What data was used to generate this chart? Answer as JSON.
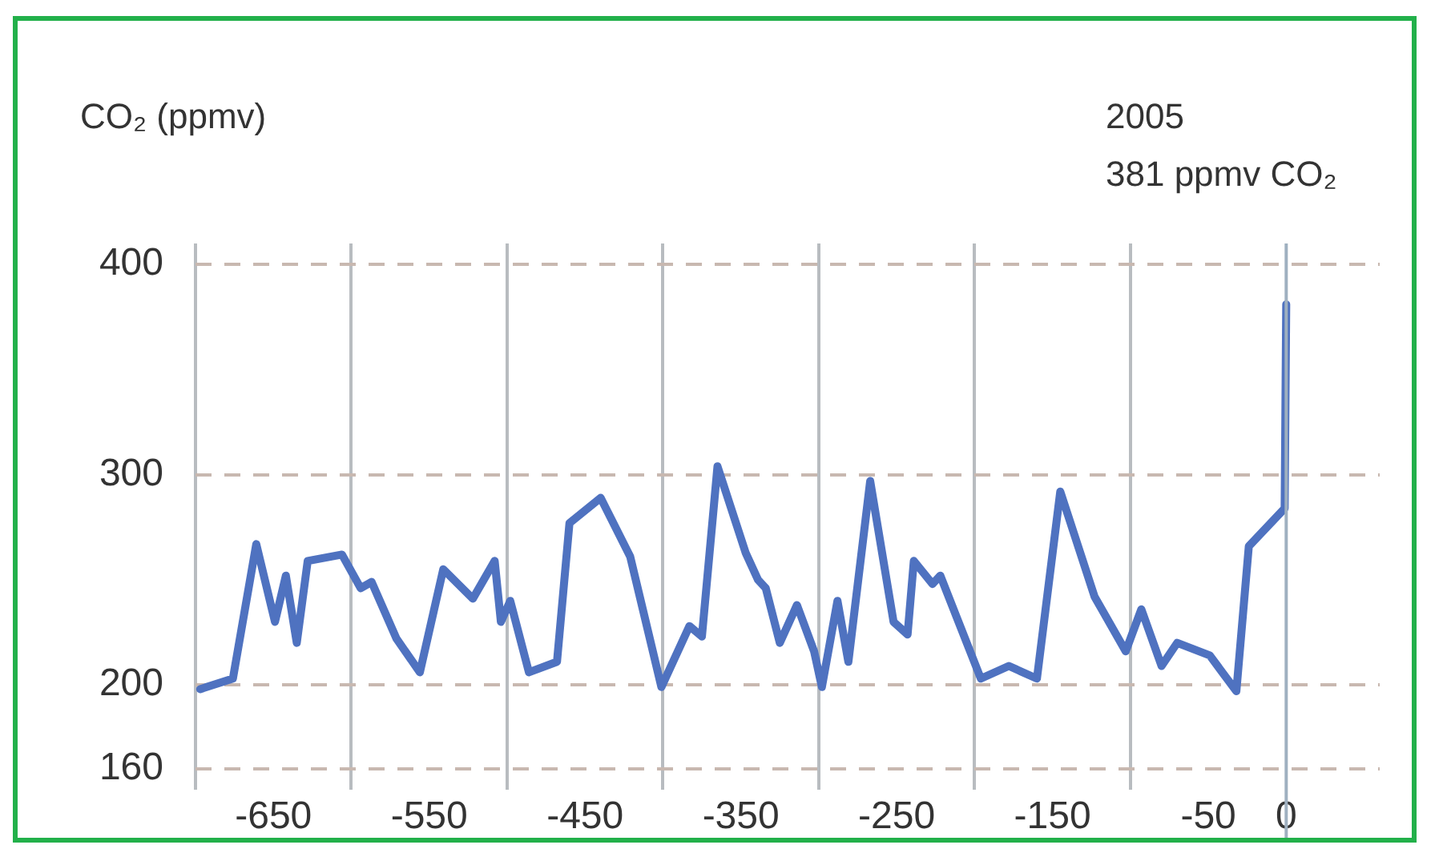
{
  "chart_data": {
    "type": "line",
    "ylabel": "CO₂ (ppmv)",
    "annotations": [
      "2005\n381 ppmv CO₂"
    ],
    "xlim": [
      -700,
      60
    ],
    "xticks": [
      {
        "value": -700,
        "label": null
      },
      -650,
      {
        "value": -600,
        "label": null
      },
      -550,
      {
        "value": -500,
        "label": null
      },
      -450,
      {
        "value": -400,
        "label": null
      },
      -350,
      {
        "value": -300,
        "label": null
      },
      -250,
      {
        "value": -200,
        "label": null
      },
      -150,
      {
        "value": -100,
        "label": null
      },
      -50,
      0
    ],
    "ylim": [
      150,
      410
    ],
    "yticks": [
      160,
      200,
      300,
      400
    ],
    "grid": true,
    "marker": "none",
    "line_style": "solid",
    "ref_lines": [
      {
        "axis": "x",
        "value": 0,
        "color": "#9fb0c0"
      }
    ],
    "series": [
      {
        "color": "#4f72c0",
        "x": [
          -697,
          -676,
          -661,
          -649,
          -642,
          -635,
          -628,
          -606,
          -594,
          -587,
          -571,
          -556,
          -541,
          -522,
          -508,
          -504,
          -498,
          -486,
          -468,
          -460,
          -440,
          -421,
          -401,
          -383,
          -375,
          -365,
          -347,
          -339,
          -334,
          -325,
          -314,
          -303,
          -298,
          -288,
          -281,
          -267,
          -252,
          -243,
          -239,
          -227,
          -222,
          -196,
          -178,
          -160,
          -145,
          -123,
          -103,
          -93,
          -80,
          -70,
          -49,
          -32,
          -24,
          -1,
          0
        ],
        "values": [
          198,
          203,
          267,
          230,
          252,
          220,
          259,
          262,
          246,
          249,
          222,
          206,
          255,
          241,
          259,
          230,
          240,
          206,
          211,
          277,
          289,
          261,
          199,
          228,
          223,
          304,
          263,
          250,
          246,
          220,
          238,
          216,
          199,
          240,
          211,
          297,
          230,
          224,
          259,
          248,
          252,
          203,
          209,
          203,
          292,
          242,
          216,
          236,
          209,
          220,
          214,
          197,
          266,
          284,
          381
        ]
      }
    ]
  }
}
